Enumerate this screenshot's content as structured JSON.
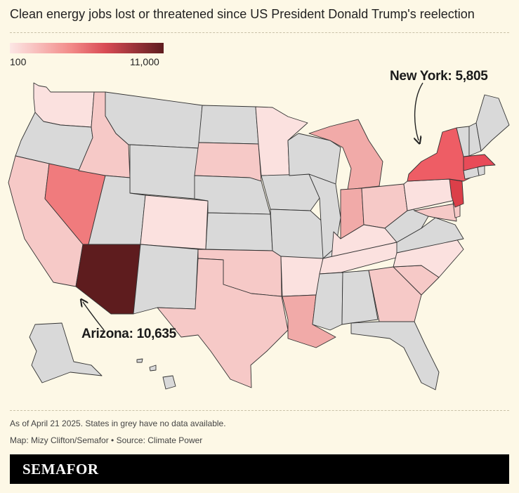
{
  "title": "Clean energy jobs lost or threatened since US President Donald Trump's reelection",
  "legend": {
    "min_label": "100",
    "max_label": "11,000",
    "colors": [
      "#fce7e5",
      "#f28a88",
      "#d94c55",
      "#5e1c1e"
    ]
  },
  "annotations": {
    "new_york": "New York: 5,805",
    "arizona": "Arizona: 10,635"
  },
  "footer": {
    "note": "As of April 21 2025. States in grey have no data available.",
    "credit": "Map: Mizy Clifton/Semafor • Source: Climate Power"
  },
  "brand": "SEMAFOR",
  "map_colors": {
    "no_data": "#d9d9d9",
    "scale_very_light": "#fbe1df",
    "scale_light": "#f6c9c7",
    "scale_mid": "#f1aaa8",
    "scale_high": "#f07b7d",
    "scale_ny": "#ee5d65",
    "scale_nj": "#db3f49",
    "scale_max": "#5e1c1e"
  },
  "state_values": {
    "New York": 5805,
    "Arizona": 10635
  }
}
